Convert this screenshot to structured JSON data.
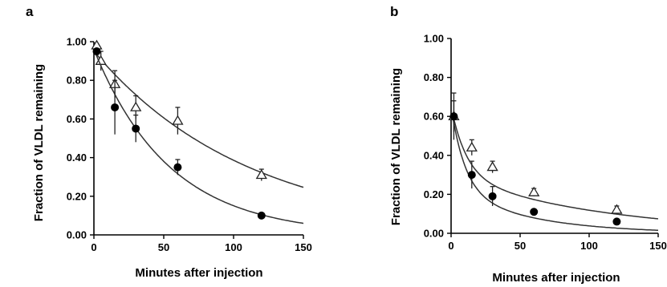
{
  "chart_data": [
    {
      "type": "scatter",
      "panel_label": "a",
      "xlabel": "Minutes after injection",
      "ylabel": "Fraction of VLDL remaining",
      "xlim": [
        0,
        150
      ],
      "ylim": [
        0,
        1
      ],
      "x_ticks": [
        0,
        50,
        100,
        150
      ],
      "y_ticks": [
        0,
        0.2,
        0.4,
        0.6,
        0.8,
        1.0
      ],
      "y_tick_labels": [
        "0.00",
        "0.20",
        "0.40",
        "0.60",
        "0.80",
        "1.00"
      ],
      "x_tick_labels": [
        "0",
        "50",
        "100",
        "150"
      ],
      "grid": false,
      "series": [
        {
          "marker": "open-triangle",
          "x": [
            2,
            5,
            15,
            30,
            60,
            120
          ],
          "y": [
            0.98,
            0.9,
            0.78,
            0.66,
            0.59,
            0.31
          ],
          "error": [
            0.0,
            0.05,
            0.07,
            0.06,
            0.07,
            0.03
          ],
          "fit": {
            "model": "exponential",
            "a": 0.95,
            "k": 0.009
          }
        },
        {
          "marker": "filled-circle",
          "x": [
            2,
            15,
            30,
            60,
            120
          ],
          "y": [
            0.95,
            0.66,
            0.55,
            0.35,
            0.1
          ],
          "error": [
            0.0,
            0.14,
            0.07,
            0.04,
            0.01
          ],
          "fit": {
            "model": "exponential",
            "a": 0.96,
            "k": 0.0185
          }
        }
      ]
    },
    {
      "type": "scatter",
      "panel_label": "b",
      "xlabel": "Minutes after injection",
      "ylabel": "Fraction of VLDL remaining",
      "xlim": [
        0,
        150
      ],
      "ylim": [
        0,
        1
      ],
      "x_ticks": [
        0,
        50,
        100,
        150
      ],
      "y_ticks": [
        0,
        0.2,
        0.4,
        0.6,
        0.8,
        1.0
      ],
      "y_tick_labels": [
        "0.00",
        "0.20",
        "0.40",
        "0.60",
        "0.80",
        "1.00"
      ],
      "x_tick_labels": [
        "0",
        "50",
        "100",
        "150"
      ],
      "grid": false,
      "series": [
        {
          "marker": "open-triangle",
          "x": [
            2,
            15,
            30,
            60,
            120
          ],
          "y": [
            0.6,
            0.44,
            0.34,
            0.21,
            0.12
          ],
          "error": [
            0.08,
            0.04,
            0.03,
            0.02,
            0.02
          ],
          "fit": {
            "model": "biexponential",
            "a1": 0.35,
            "k1": 0.09,
            "a2": 0.3,
            "k2": 0.0093
          }
        },
        {
          "marker": "filled-circle",
          "x": [
            2,
            15,
            30,
            60,
            120
          ],
          "y": [
            0.6,
            0.3,
            0.19,
            0.11,
            0.06
          ],
          "error": [
            0.12,
            0.07,
            0.05,
            0.01,
            0.01
          ],
          "fit": {
            "model": "biexponential",
            "a1": 0.42,
            "k1": 0.1,
            "a2": 0.23,
            "k2": 0.018
          }
        }
      ]
    }
  ]
}
